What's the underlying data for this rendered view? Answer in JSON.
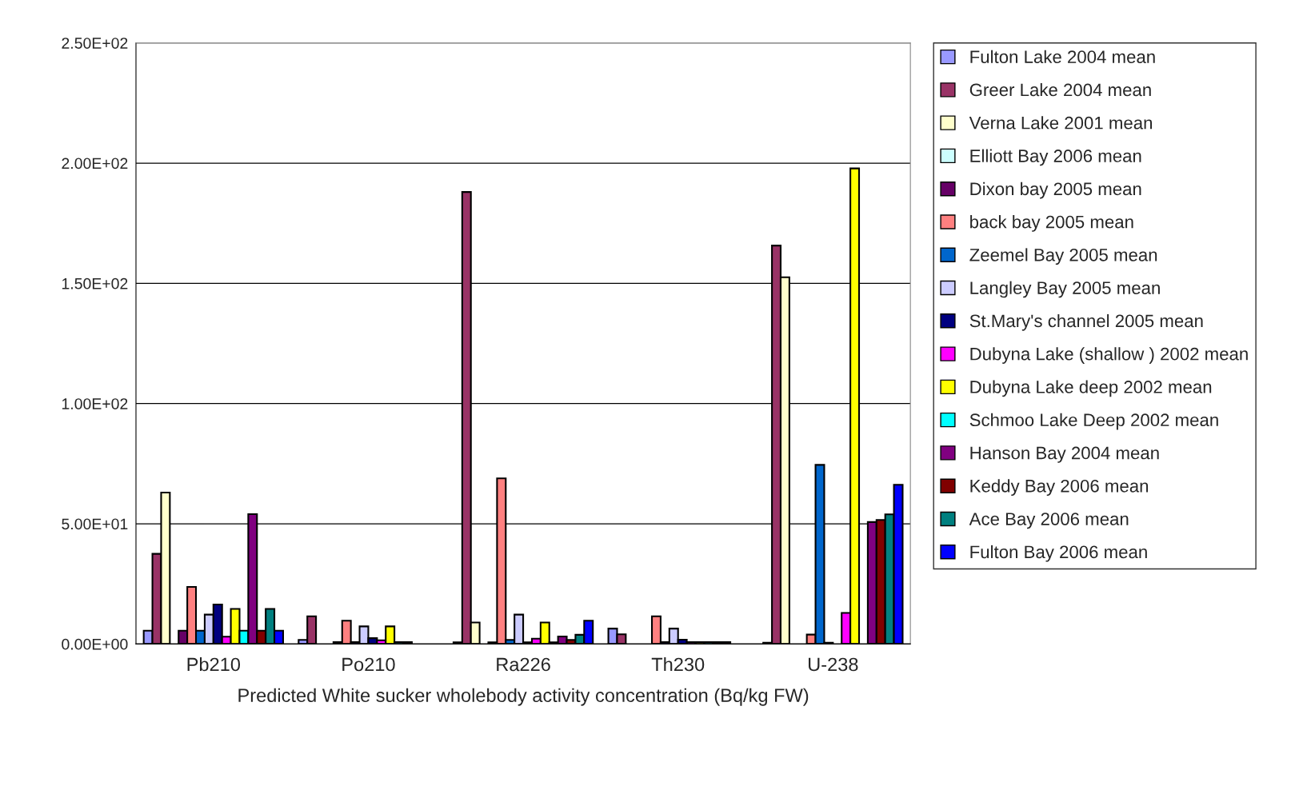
{
  "chart_data": {
    "type": "bar",
    "categories": [
      "Pb210",
      "Po210",
      "Ra226",
      "Th230",
      "U-238"
    ],
    "xlabel": "Predicted White sucker wholebody activity concentration (Bq/kg FW)",
    "ylim": [
      0,
      250
    ],
    "yticks": [
      {
        "value": 0,
        "label": "0.00E+00"
      },
      {
        "value": 50,
        "label": "5.00E+01"
      },
      {
        "value": 100,
        "label": "1.00E+02"
      },
      {
        "value": 150,
        "label": "1.50E+02"
      },
      {
        "value": 200,
        "label": "2.00E+02"
      },
      {
        "value": 250,
        "label": "2.50E+02"
      }
    ],
    "grid": "y",
    "legend": "right",
    "series": [
      {
        "name": "Fulton Lake 2004 mean",
        "color": "#9999ff",
        "values": [
          5.5,
          1.7,
          0.7,
          6.4,
          0.5
        ]
      },
      {
        "name": "Greer Lake 2004 mean",
        "color": "#993366",
        "values": [
          37.5,
          11.5,
          188,
          4,
          165.7
        ]
      },
      {
        "name": "Verna Lake 2001 mean",
        "color": "#ffffcc",
        "values": [
          63,
          null,
          8.9,
          null,
          152.5
        ]
      },
      {
        "name": "Elliott Bay 2006 mean",
        "color": "#ccffff",
        "values": [
          null,
          null,
          null,
          null,
          null
        ]
      },
      {
        "name": "Dixon bay 2005 mean",
        "color": "#660066",
        "values": [
          5.5,
          0.8,
          0.7,
          null,
          null
        ]
      },
      {
        "name": "back bay 2005 mean",
        "color": "#ff8080",
        "values": [
          23.7,
          9.7,
          68.9,
          11.5,
          3.9
        ]
      },
      {
        "name": "Zeemel Bay 2005 mean",
        "color": "#0066cc",
        "values": [
          5.5,
          0.8,
          1.7,
          0.8,
          74.5
        ]
      },
      {
        "name": "Langley Bay 2005 mean",
        "color": "#ccccff",
        "values": [
          12.2,
          7.3,
          12.2,
          6.4,
          0.5
        ]
      },
      {
        "name": "St.Mary's channel 2005 mean",
        "color": "#000080",
        "values": [
          16.4,
          2.4,
          0.7,
          1.8,
          null
        ]
      },
      {
        "name": "Dubyna Lake (shallow ) 2002 mean",
        "color": "#ff00ff",
        "values": [
          3,
          1.5,
          2.2,
          0.8,
          12.9
        ]
      },
      {
        "name": "Dubyna Lake deep 2002 mean",
        "color": "#ffff00",
        "values": [
          14.6,
          7.3,
          8.9,
          0.8,
          197.8
        ]
      },
      {
        "name": "Schmoo Lake Deep 2002 mean",
        "color": "#00ffff",
        "values": [
          5.5,
          0.8,
          0.7,
          0.8,
          null
        ]
      },
      {
        "name": "Hanson Bay 2004 mean",
        "color": "#800080",
        "values": [
          54,
          0.8,
          3.1,
          0.8,
          50.7
        ]
      },
      {
        "name": "Keddy Bay 2006 mean",
        "color": "#800000",
        "values": [
          5.5,
          null,
          1.7,
          0.8,
          51.6
        ]
      },
      {
        "name": "Ace Bay 2006 mean",
        "color": "#008080",
        "values": [
          14.6,
          null,
          3.8,
          null,
          53.9
        ]
      },
      {
        "name": "Fulton Bay 2006 mean",
        "color": "#0000ff",
        "values": [
          5.5,
          null,
          9.7,
          null,
          66.2
        ]
      }
    ]
  }
}
